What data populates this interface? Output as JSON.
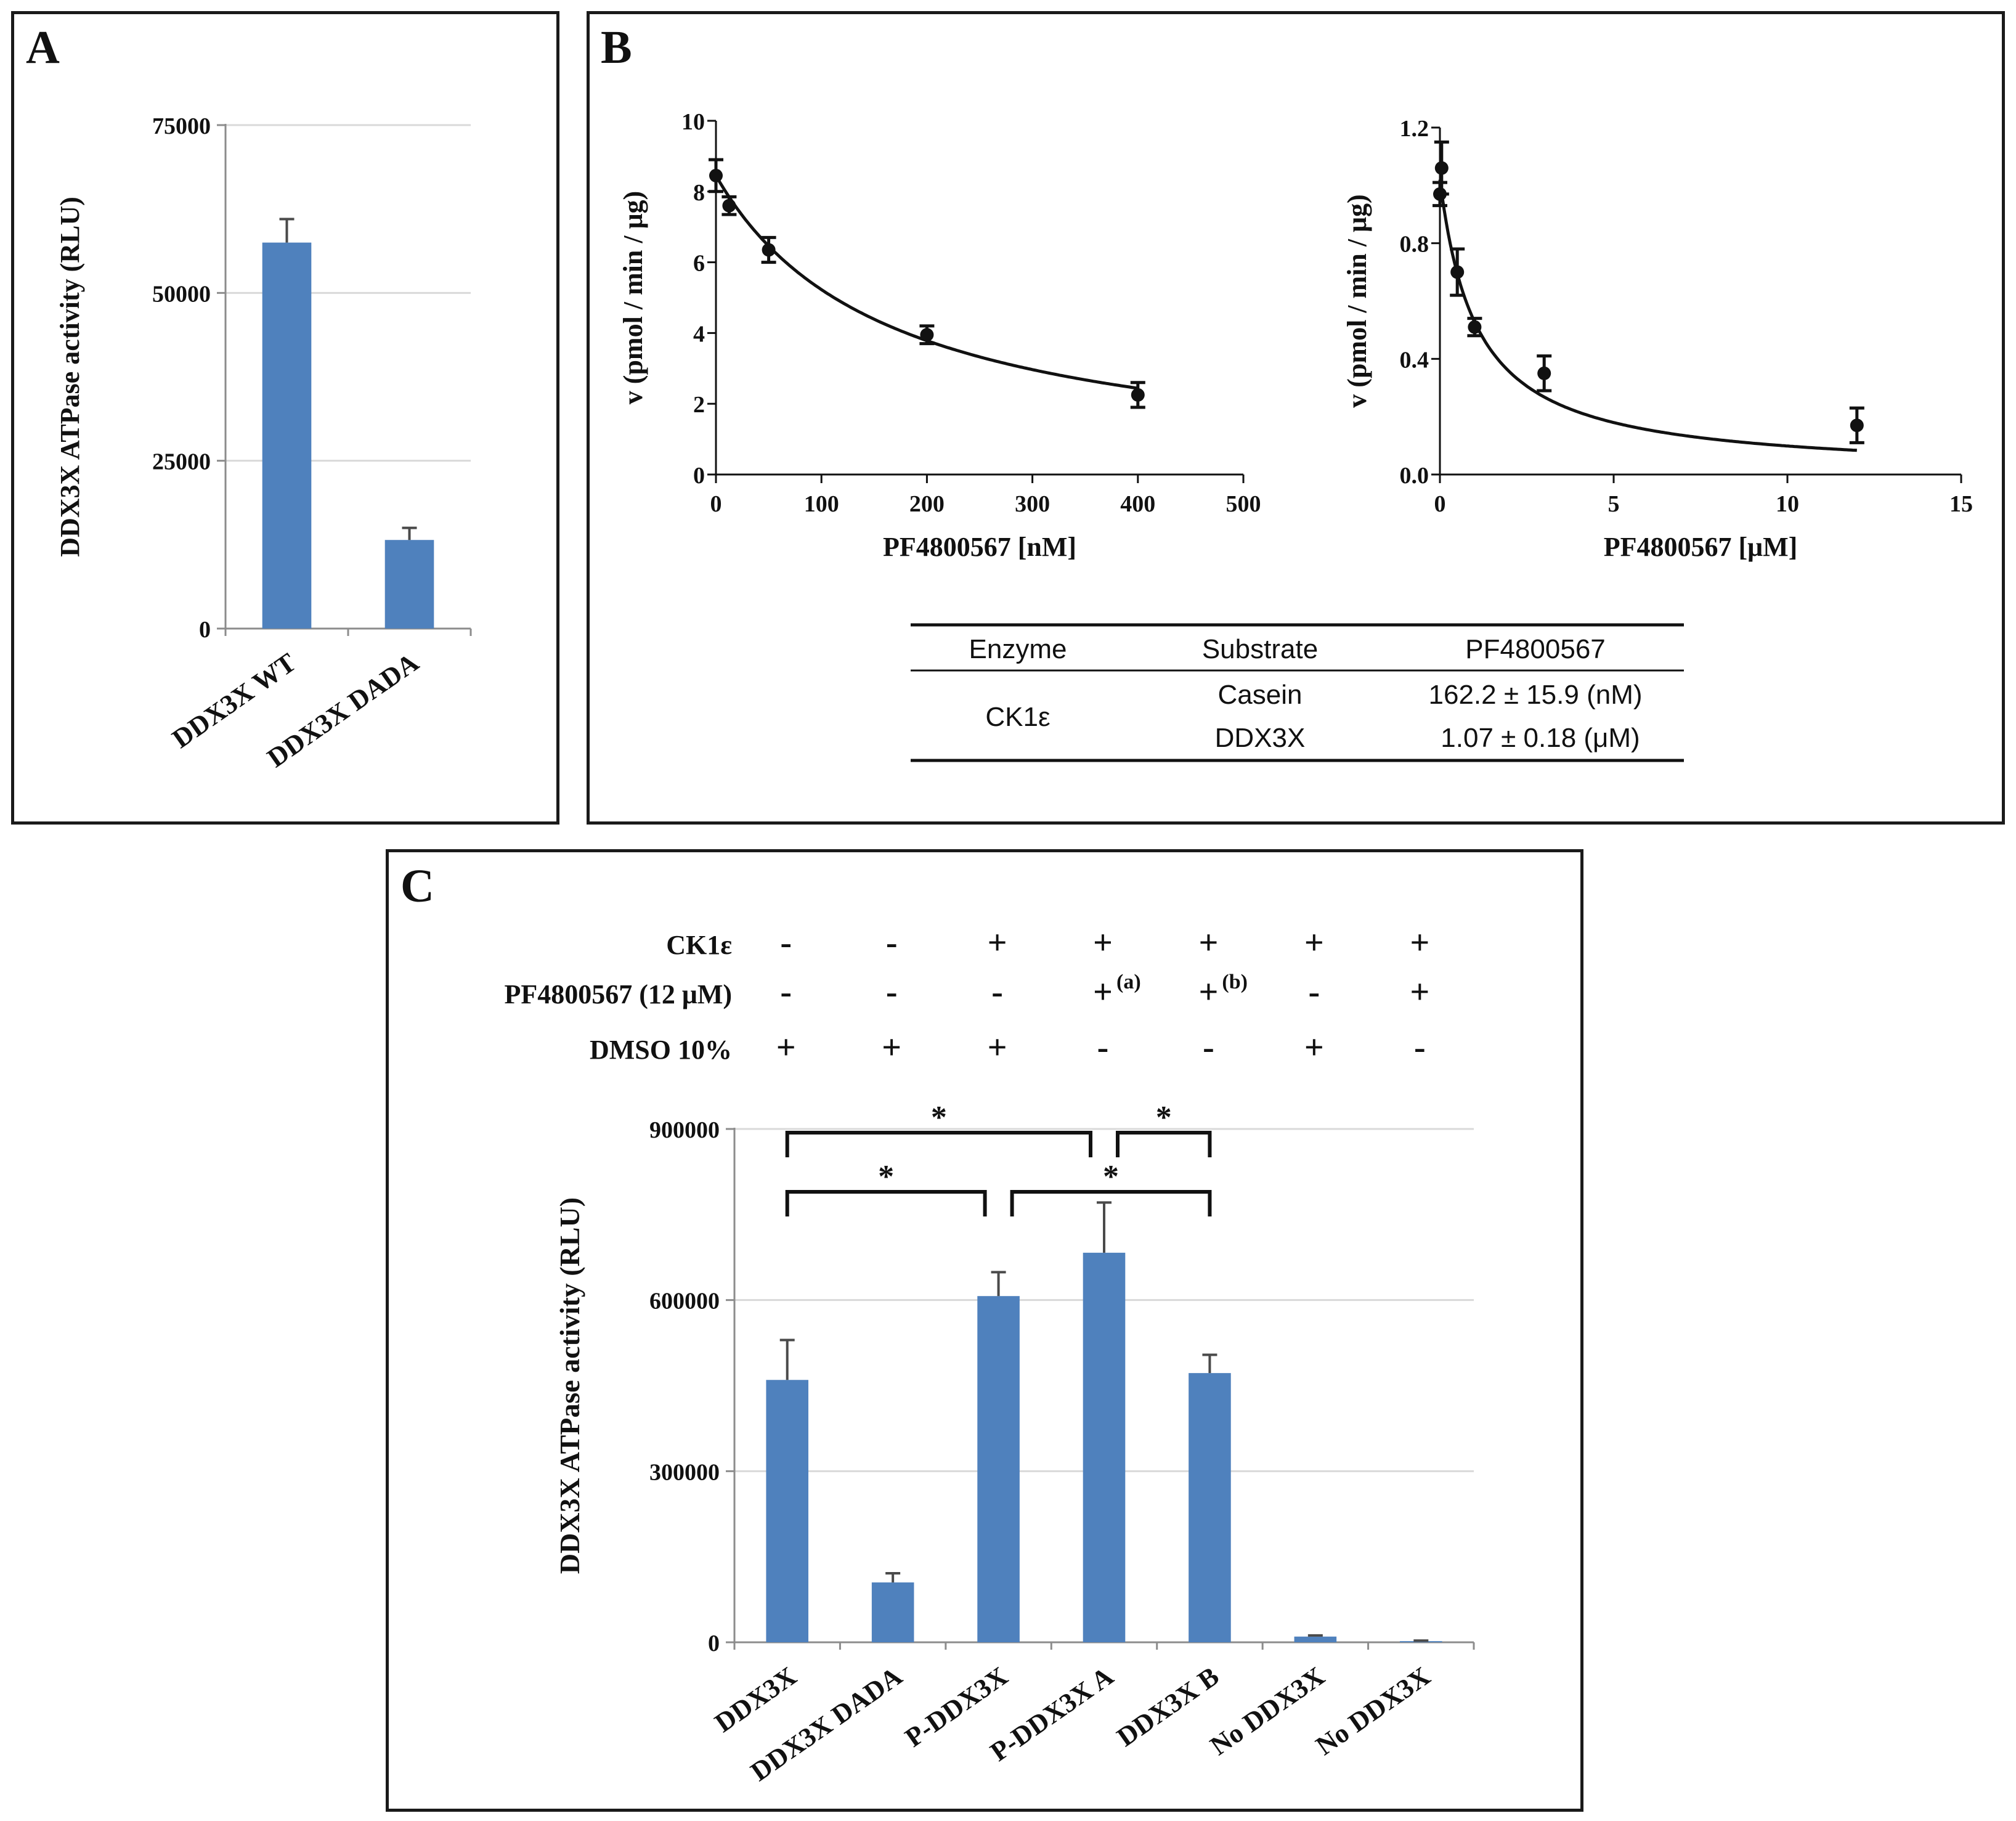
{
  "colors": {
    "bar": "#4f81bd",
    "grid": "#d9d9d9",
    "axis": "#8c8c8c",
    "ink": "#111111"
  },
  "panel_labels": {
    "a": "A",
    "b": "B",
    "c": "C"
  },
  "chart_data": [
    {
      "id": "A",
      "type": "bar",
      "categories": [
        "DDX3X WT",
        "DDX3X DADA"
      ],
      "values": [
        57500,
        13200
      ],
      "errors": [
        3500,
        1800
      ],
      "ylabel": "DDX3X ATPase activity (RLU)",
      "ylim": [
        0,
        75000
      ],
      "yticks": [
        0,
        25000,
        50000,
        75000
      ],
      "grid": true
    },
    {
      "id": "B-left",
      "type": "scatter",
      "x": [
        0,
        12.5,
        50,
        200,
        400
      ],
      "y": [
        8.45,
        7.6,
        6.35,
        3.95,
        2.25
      ],
      "errors": [
        0.45,
        0.25,
        0.35,
        0.25,
        0.35
      ],
      "fit": {
        "model": "v0/(1+x/IC50)",
        "v0": 8.45,
        "ic50": 162.2
      },
      "xlabel": "PF4800567 [nM]",
      "ylabel": "v (pmol / min / μg)",
      "xlim": [
        0,
        500
      ],
      "ylim": [
        0,
        10
      ],
      "xticks": [
        0,
        100,
        200,
        300,
        400,
        500
      ],
      "yticks": [
        0,
        2,
        4,
        6,
        8,
        10
      ]
    },
    {
      "id": "B-right",
      "type": "scatter",
      "x": [
        0,
        0.05,
        0.5,
        1,
        3,
        12
      ],
      "y": [
        0.97,
        1.06,
        0.7,
        0.51,
        0.35,
        0.17
      ],
      "errors": [
        0.04,
        0.09,
        0.08,
        0.03,
        0.06,
        0.06
      ],
      "fit": {
        "model": "v0/(1+x/IC50)",
        "v0": 1.02,
        "ic50": 1.07
      },
      "xlabel": "PF4800567 [μM]",
      "ylabel": "v (pmol / min / μg)",
      "xlim": [
        0,
        15
      ],
      "ylim": [
        0,
        1.2
      ],
      "xticks": [
        0,
        5,
        10,
        15
      ],
      "ytick_labels": [
        "0.0",
        "0.4",
        "0.8",
        "1.2"
      ],
      "yticks": [
        0,
        0.4,
        0.8,
        1.2
      ]
    },
    {
      "id": "C",
      "type": "bar",
      "categories": [
        "DDX3X",
        "DDX3X DADA",
        "P-DDX3X",
        "P-DDX3X A",
        "DDX3X B",
        "No DDX3X",
        "No DDX3X"
      ],
      "values": [
        460000,
        105000,
        607000,
        683000,
        472000,
        10000,
        2000
      ],
      "errors": [
        70000,
        16000,
        42000,
        88000,
        32000,
        2000,
        1000
      ],
      "ylabel": "DDX3X ATPase activity (RLU)",
      "ylim": [
        0,
        900000
      ],
      "yticks": [
        0,
        300000,
        600000,
        900000
      ],
      "grid": true,
      "significance": [
        {
          "from": 0,
          "to": 3,
          "label": "*"
        },
        {
          "from": 3,
          "to": 4,
          "label": "*"
        },
        {
          "from": 0,
          "to": 2,
          "label": "*"
        },
        {
          "from": 2,
          "to": 4,
          "label": "*"
        }
      ]
    }
  ],
  "table": {
    "headers": [
      "Enzyme",
      "Substrate",
      "PF4800567"
    ],
    "enzyme": "CK1ε",
    "rows": [
      {
        "substrate": "Casein",
        "value": "162.2 ± 15.9 (nM)"
      },
      {
        "substrate": "DDX3X",
        "value": "1.07 ± 0.18 (μM)"
      }
    ]
  },
  "conditions": [
    {
      "label": "CK1ε",
      "signs": [
        "-",
        "-",
        "+",
        "+",
        "+",
        "+",
        "+"
      ],
      "sups": [
        "",
        "",
        "",
        "",
        "",
        "",
        ""
      ]
    },
    {
      "label": "PF4800567 (12 μM)",
      "signs": [
        "-",
        "-",
        "-",
        "+",
        "+",
        "-",
        "+"
      ],
      "sups": [
        "",
        "",
        "",
        "(a)",
        "(b)",
        "",
        ""
      ]
    },
    {
      "label": "DMSO 10%",
      "signs": [
        "+",
        "+",
        "+",
        "-",
        "-",
        "+",
        "-"
      ],
      "sups": [
        "",
        "",
        "",
        "",
        "",
        "",
        ""
      ]
    }
  ]
}
